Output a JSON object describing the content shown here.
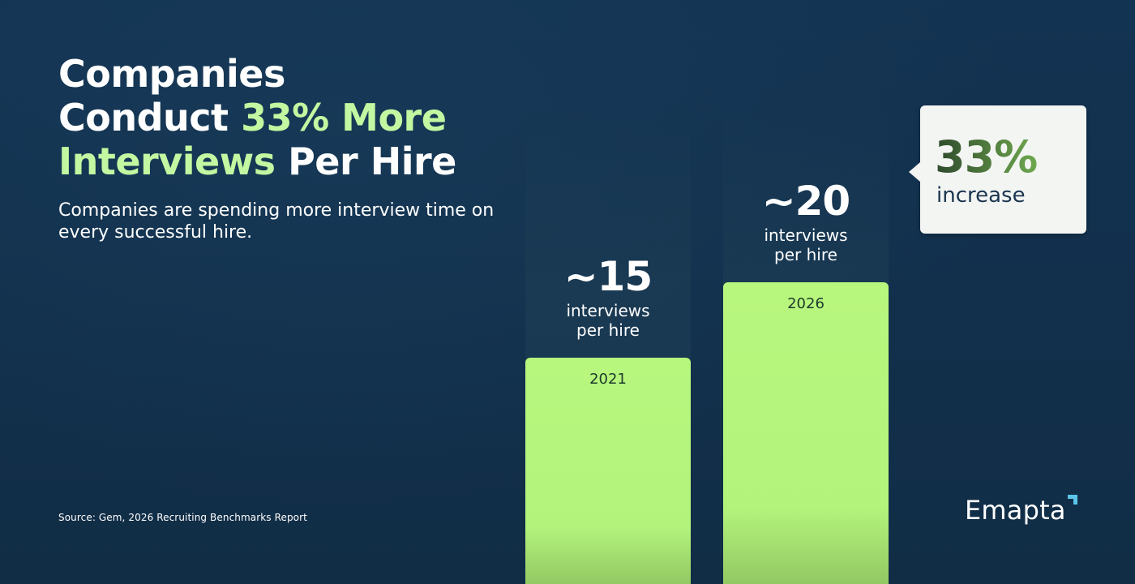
{
  "title": {
    "part1": "Companies",
    "part2": "Conduct ",
    "part3": "33% More",
    "part4": "Interviews",
    "part5": " Per Hire"
  },
  "subtitle": "Companies are spending more interview time on every successful hire.",
  "source": "Source: Gem, 2026 Recruiting Benchmarks Report",
  "logo": "Emapta",
  "colors": {
    "background": "#12304a",
    "highlight": "#c4f7a1",
    "bar": "#b5f47d",
    "callout_bg": "#f3f5f3"
  },
  "chart_data": {
    "type": "bar",
    "categories": [
      "2021",
      "2026"
    ],
    "values": [
      15,
      20
    ],
    "value_labels": [
      "~15",
      "~20"
    ],
    "unit_label_line1": "interviews",
    "unit_label_line2": "per hire",
    "ylim": [
      0,
      41
    ],
    "annotation": {
      "value": "33%",
      "label": "increase"
    }
  }
}
